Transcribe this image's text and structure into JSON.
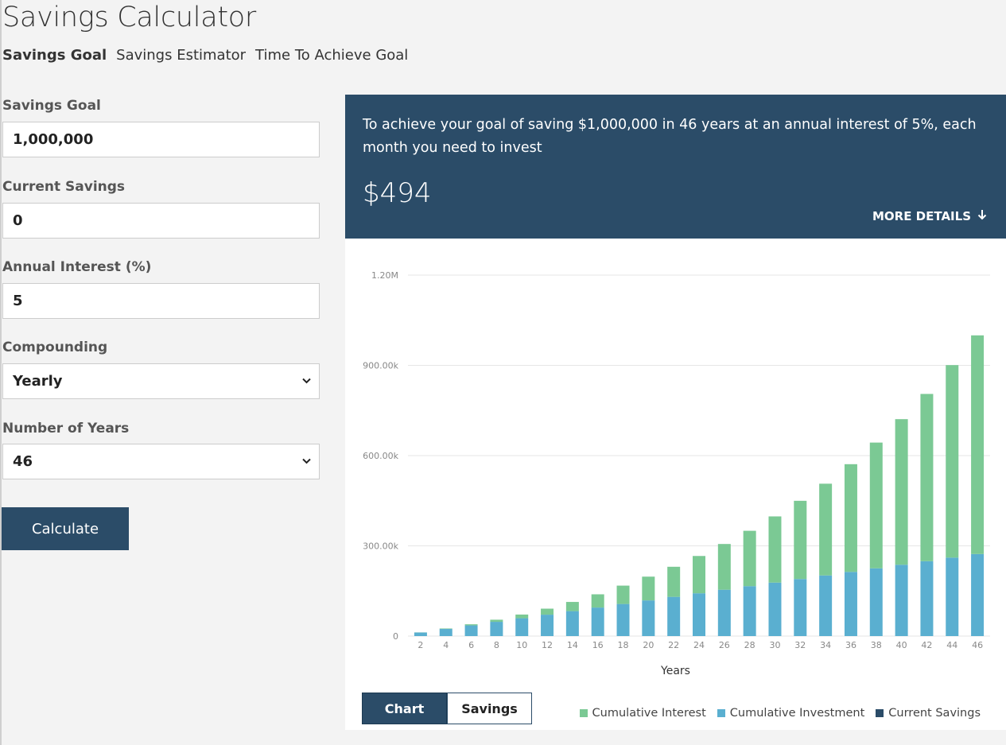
{
  "title": "Savings Calculator",
  "tabs": [
    {
      "label": "Savings Goal"
    },
    {
      "label": "Savings Estimator"
    },
    {
      "label": "Time To Achieve Goal"
    }
  ],
  "form": {
    "savings_goal": {
      "label": "Savings Goal",
      "value": "1,000,000"
    },
    "current_savings": {
      "label": "Current Savings",
      "value": "0"
    },
    "annual_interest": {
      "label": "Annual Interest (%)",
      "value": "5"
    },
    "compounding": {
      "label": "Compounding",
      "value": "Yearly"
    },
    "years": {
      "label": "Number of Years",
      "value": "46"
    },
    "calculate_label": "Calculate"
  },
  "result": {
    "text": "To achieve your goal of saving $1,000,000 in 46 years at an annual interest of 5%, each month you need to invest",
    "amount": "$494",
    "more_details_label": "MORE DETAILS"
  },
  "colors": {
    "primary": "#2b4c68",
    "interest": "#7bc994",
    "investment": "#5aafd0",
    "current_savings": "#2b4c68"
  },
  "view_toggle": {
    "chart_label": "Chart",
    "savings_label": "Savings"
  },
  "chart_data": {
    "type": "bar",
    "stacked": true,
    "xlabel": "Years",
    "ylabel": "",
    "ylim": [
      0,
      1200000
    ],
    "y_ticks": [
      0,
      300000,
      600000,
      900000,
      1200000
    ],
    "y_tick_labels": [
      "0",
      "300.00k",
      "600.00k",
      "900.00k",
      "1.20M"
    ],
    "grid": true,
    "legend_position": "bottom-right",
    "categories": [
      "2",
      "4",
      "6",
      "8",
      "10",
      "12",
      "14",
      "16",
      "18",
      "20",
      "22",
      "24",
      "26",
      "28",
      "30",
      "32",
      "34",
      "36",
      "38",
      "40",
      "42",
      "44",
      "46"
    ],
    "series": [
      {
        "name": "Current Savings",
        "values": [
          0,
          0,
          0,
          0,
          0,
          0,
          0,
          0,
          0,
          0,
          0,
          0,
          0,
          0,
          0,
          0,
          0,
          0,
          0,
          0,
          0,
          0,
          0
        ]
      },
      {
        "name": "Cumulative Investment",
        "values": [
          11856,
          23712,
          35568,
          47424,
          59280,
          71136,
          82992,
          94848,
          106704,
          118560,
          130416,
          142272,
          154128,
          165984,
          177840,
          189696,
          201552,
          213408,
          225264,
          237120,
          248976,
          260832,
          272688
        ]
      },
      {
        "name": "Cumulative Interest",
        "values": [
          296,
          1500,
          3660,
          7000,
          12300,
          20000,
          30500,
          44000,
          61000,
          79000,
          100000,
          124000,
          152000,
          184000,
          220000,
          260000,
          305000,
          358000,
          418000,
          484000,
          556000,
          640000,
          727000
        ]
      }
    ]
  }
}
